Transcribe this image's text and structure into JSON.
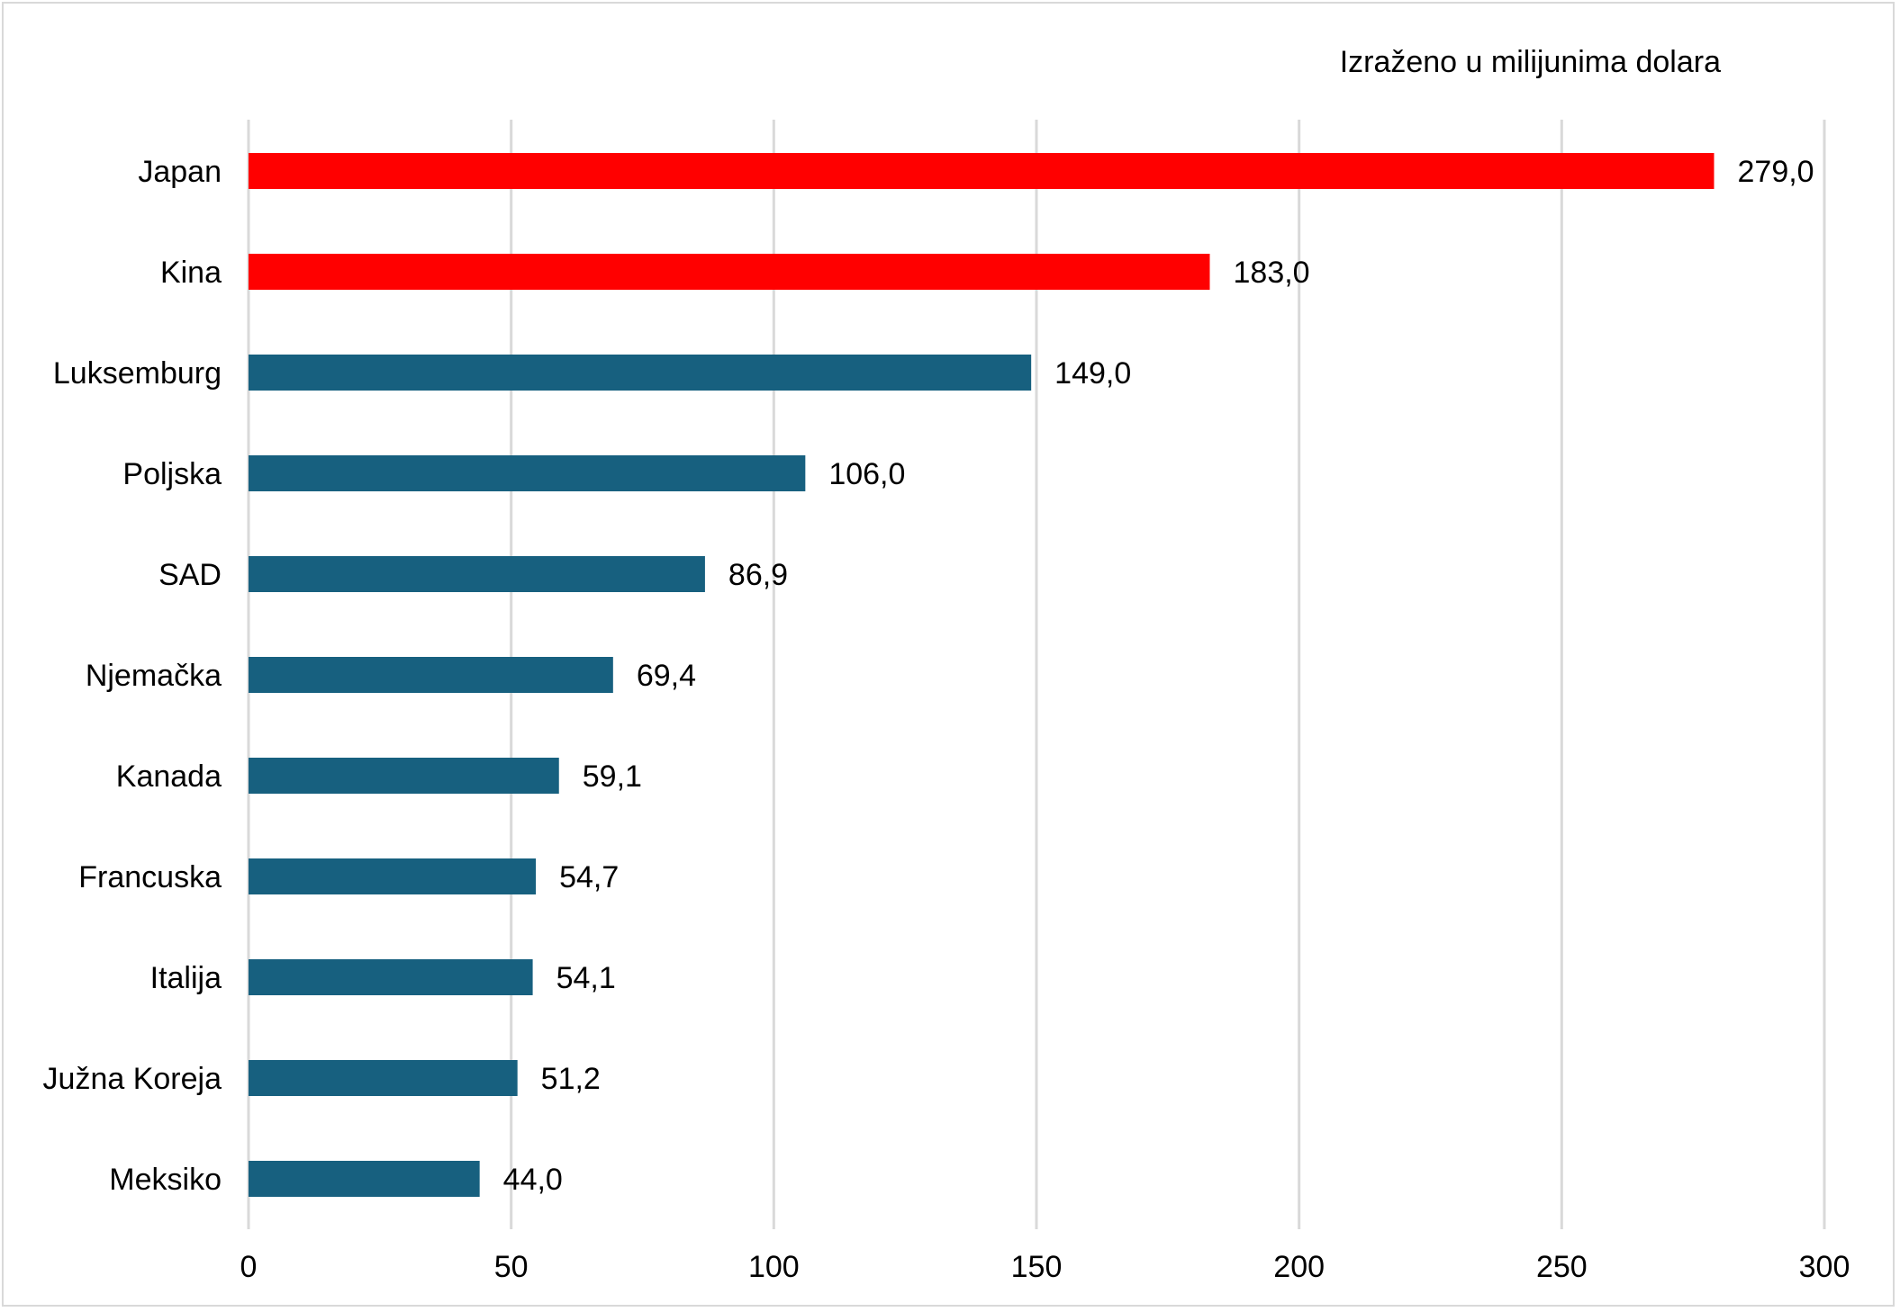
{
  "chart_data": {
    "type": "bar",
    "orientation": "horizontal",
    "unit_note": "Izraženo u milijunima dolara",
    "categories": [
      "Japan",
      "Kina",
      "Luksemburg",
      "Poljska",
      "SAD",
      "Njemačka",
      "Kanada",
      "Francuska",
      "Italija",
      "Južna Koreja",
      "Meksiko"
    ],
    "values": [
      279.0,
      183.0,
      149.0,
      106.0,
      86.9,
      69.4,
      59.1,
      54.7,
      54.1,
      51.2,
      44.0
    ],
    "value_labels": [
      "279,0",
      "183,0",
      "149,0",
      "106,0",
      "86,9",
      "69,4",
      "59,1",
      "54,7",
      "54,1",
      "51,2",
      "44,0"
    ],
    "highlighted": [
      true,
      true,
      false,
      false,
      false,
      false,
      false,
      false,
      false,
      false,
      false
    ],
    "xlim": [
      0,
      300
    ],
    "xticks": [
      0,
      50,
      100,
      150,
      200,
      250,
      300
    ],
    "xtick_labels": [
      "0",
      "50",
      "100",
      "150",
      "200",
      "250",
      "300"
    ],
    "grid": "vertical",
    "colors": {
      "highlight": "#ff0000",
      "default": "#17607f",
      "grid": "#d9d9d9"
    }
  }
}
